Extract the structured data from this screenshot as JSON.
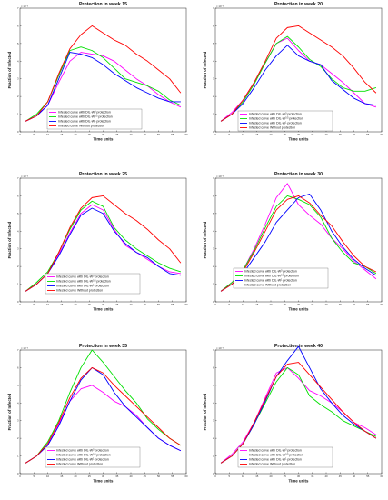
{
  "chart_data": [
    {
      "type": "line",
      "title": "Protection in week 15",
      "xlabel": "Time units",
      "ylabel": "Fraction of Infected",
      "y_exponent": "× 10⁻³",
      "xlim": [
        0,
        60
      ],
      "ylim": [
        0,
        7
      ],
      "xticks": [
        0,
        5,
        10,
        15,
        20,
        25,
        30,
        35,
        40,
        45,
        50,
        55,
        60
      ],
      "yticks": [
        0,
        1,
        2,
        3,
        4,
        5,
        6,
        7
      ],
      "grid": false,
      "legend_position": "lower-left",
      "x": [
        2,
        6,
        10,
        14,
        18,
        22,
        26,
        30,
        34,
        38,
        42,
        46,
        50,
        54,
        58
      ],
      "series": [
        {
          "name": "Infected curve with DIL-W",
          "sup": "0",
          "suffix": " protection",
          "color": "#ff00ff",
          "values": [
            0.6,
            0.9,
            1.5,
            2.8,
            4.0,
            4.5,
            4.4,
            4.3,
            4.0,
            3.5,
            3.0,
            2.6,
            2.1,
            1.7,
            1.4
          ]
        },
        {
          "name": "Infected curve with DIL-W",
          "sup": "0.5",
          "suffix": " protection",
          "color": "#00e000",
          "values": [
            0.6,
            1.0,
            1.7,
            3.2,
            4.6,
            4.8,
            4.6,
            4.2,
            3.6,
            3.0,
            2.8,
            2.6,
            2.3,
            1.8,
            1.5
          ]
        },
        {
          "name": "Infected curve with DIL-W",
          "sup": "1",
          "suffix": " protection",
          "color": "#0000ff",
          "values": [
            0.6,
            0.9,
            1.5,
            3.0,
            4.5,
            4.4,
            4.2,
            3.8,
            3.3,
            2.9,
            2.5,
            2.2,
            1.9,
            1.7,
            1.7
          ]
        },
        {
          "name": "Infected curve Without protection",
          "color": "#ff0000",
          "values": [
            0.6,
            0.9,
            1.7,
            3.3,
            4.7,
            5.5,
            6.0,
            5.6,
            5.2,
            4.9,
            4.4,
            4.0,
            3.5,
            3.0,
            2.2
          ]
        }
      ]
    },
    {
      "type": "line",
      "title": "Protection in week 20",
      "xlabel": "Time units",
      "ylabel": "Fraction of Infected",
      "y_exponent": "× 10⁻³",
      "xlim": [
        0,
        60
      ],
      "ylim": [
        0,
        7
      ],
      "xticks": [
        0,
        5,
        10,
        15,
        20,
        25,
        30,
        35,
        40,
        45,
        50,
        55,
        60
      ],
      "yticks": [
        0,
        1,
        2,
        3,
        4,
        5,
        6,
        7
      ],
      "grid": false,
      "legend_position": "lower-center",
      "x": [
        2,
        6,
        10,
        14,
        18,
        22,
        26,
        30,
        34,
        38,
        42,
        46,
        50,
        54,
        58
      ],
      "series": [
        {
          "name": "Infected curve with DIL-W",
          "sup": "0",
          "suffix": " protection",
          "color": "#ff00ff",
          "values": [
            0.6,
            1.1,
            1.8,
            2.8,
            3.9,
            5.0,
            5.3,
            4.6,
            4.0,
            3.8,
            3.3,
            2.8,
            2.2,
            1.6,
            1.4
          ]
        },
        {
          "name": "Infected curve with DIL-W",
          "sup": "0.5",
          "suffix": " protection",
          "color": "#00e000",
          "values": [
            0.6,
            1.0,
            1.7,
            2.7,
            3.9,
            5.0,
            5.4,
            4.8,
            4.1,
            3.7,
            3.0,
            2.5,
            2.3,
            2.3,
            2.5
          ]
        },
        {
          "name": "Infected curve with DIL-W",
          "sup": "1",
          "suffix": " protection",
          "color": "#0000ff",
          "values": [
            0.6,
            1.0,
            1.6,
            2.5,
            3.5,
            4.3,
            4.9,
            4.3,
            4.0,
            3.8,
            2.9,
            2.4,
            1.9,
            1.6,
            1.5
          ]
        },
        {
          "name": "Infected curve Without protection",
          "color": "#ff0000",
          "values": [
            0.6,
            1.0,
            1.8,
            2.8,
            4.0,
            5.3,
            5.9,
            6.0,
            5.6,
            5.2,
            4.8,
            4.3,
            3.6,
            2.8,
            2.2
          ]
        }
      ]
    },
    {
      "type": "line",
      "title": "Protection in week 25",
      "xlabel": "Time units",
      "ylabel": "Fraction of Infected",
      "y_exponent": "× 10⁻³",
      "xlim": [
        0,
        60
      ],
      "ylim": [
        0,
        7
      ],
      "xticks": [
        0,
        5,
        10,
        15,
        20,
        25,
        30,
        35,
        40,
        45,
        50,
        55,
        60
      ],
      "yticks": [
        0,
        1,
        2,
        3,
        4,
        5,
        6,
        7
      ],
      "grid": false,
      "legend_position": "lower-left",
      "x": [
        2,
        6,
        10,
        14,
        18,
        22,
        26,
        30,
        34,
        38,
        42,
        46,
        50,
        54,
        58
      ],
      "series": [
        {
          "name": "Infected curve with DIL-W",
          "sup": "0",
          "suffix": " protection",
          "color": "#ff00ff",
          "values": [
            0.6,
            1.0,
            1.6,
            2.7,
            3.9,
            5.0,
            5.5,
            5.2,
            4.1,
            3.2,
            2.8,
            2.4,
            2.0,
            1.7,
            1.6
          ]
        },
        {
          "name": "Infected curve with DIL-W",
          "sup": "0.5",
          "suffix": " protection",
          "color": "#00e000",
          "values": [
            0.6,
            1.1,
            1.7,
            2.8,
            4.1,
            5.2,
            5.7,
            5.4,
            4.2,
            3.5,
            3.0,
            2.6,
            2.2,
            1.9,
            1.7
          ]
        },
        {
          "name": "Infected curve with DIL-W",
          "sup": "1",
          "suffix": " protection",
          "color": "#0000ff",
          "values": [
            0.6,
            1.0,
            1.6,
            2.6,
            3.8,
            4.9,
            5.3,
            5.0,
            4.0,
            3.3,
            2.8,
            2.5,
            2.0,
            1.6,
            1.5
          ]
        },
        {
          "name": "Infected curve Without protection",
          "color": "#ff0000",
          "values": [
            0.6,
            1.0,
            1.6,
            2.8,
            4.2,
            5.3,
            5.9,
            6.0,
            5.5,
            5.0,
            4.6,
            4.1,
            3.5,
            3.0,
            2.2
          ]
        }
      ]
    },
    {
      "type": "line",
      "title": "Protection in week 30",
      "xlabel": "Time units",
      "ylabel": "Fraction of Infected",
      "y_exponent": "× 10⁻³",
      "xlim": [
        0,
        60
      ],
      "ylim": [
        0,
        7
      ],
      "xticks": [
        0,
        5,
        10,
        15,
        20,
        25,
        30,
        35,
        40,
        45,
        50,
        55,
        60
      ],
      "yticks": [
        0,
        1,
        2,
        3,
        4,
        5,
        6,
        7
      ],
      "grid": false,
      "legend_position": "lower-left",
      "x": [
        2,
        6,
        10,
        14,
        18,
        22,
        26,
        30,
        34,
        38,
        42,
        46,
        50,
        54,
        58
      ],
      "series": [
        {
          "name": "Infected curve with DIL-W",
          "sup": "0",
          "suffix": " protection",
          "color": "#ff00ff",
          "values": [
            0.6,
            1.1,
            1.8,
            3.0,
            4.4,
            5.9,
            6.7,
            5.5,
            4.9,
            4.4,
            3.6,
            3.0,
            2.3,
            1.8,
            1.3
          ]
        },
        {
          "name": "Infected curve with DIL-W",
          "sup": "0.5",
          "suffix": " protection",
          "color": "#00e000",
          "values": [
            0.6,
            1.1,
            1.8,
            2.9,
            4.2,
            5.4,
            6.0,
            5.8,
            5.5,
            4.8,
            3.6,
            2.8,
            2.2,
            2.0,
            1.6
          ]
        },
        {
          "name": "Infected curve with DIL-W",
          "sup": "1",
          "suffix": " protection",
          "color": "#0000ff",
          "values": [
            0.6,
            1.0,
            1.6,
            2.5,
            3.4,
            4.5,
            5.2,
            5.9,
            6.1,
            5.2,
            4.0,
            3.1,
            2.4,
            1.9,
            1.5
          ]
        },
        {
          "name": "Infected curve Without protection",
          "color": "#ff0000",
          "values": [
            0.6,
            1.0,
            1.7,
            2.8,
            4.0,
            5.2,
            5.8,
            6.0,
            5.6,
            4.9,
            4.3,
            3.4,
            2.6,
            2.0,
            1.7
          ]
        }
      ]
    },
    {
      "type": "line",
      "title": "Protection in week 35",
      "xlabel": "Time units",
      "ylabel": "Fraction of Infected",
      "y_exponent": "× 10⁻³",
      "xlim": [
        0,
        60
      ],
      "ylim": [
        0,
        7
      ],
      "xticks": [
        0,
        5,
        10,
        15,
        20,
        25,
        30,
        35,
        40,
        45,
        50,
        55,
        60
      ],
      "yticks": [
        0,
        1,
        2,
        3,
        4,
        5,
        6,
        7
      ],
      "grid": false,
      "legend_position": "lower-left",
      "x": [
        2,
        6,
        10,
        14,
        18,
        22,
        26,
        30,
        34,
        38,
        42,
        46,
        50,
        54,
        58
      ],
      "series": [
        {
          "name": "Infected curve with DIL-W",
          "sup": "0",
          "suffix": " protection",
          "color": "#ff00ff",
          "values": [
            0.6,
            1.0,
            1.6,
            2.8,
            4.1,
            4.8,
            5.0,
            4.6,
            4.1,
            3.8,
            3.3,
            2.6,
            2.0,
            1.6,
            1.3
          ]
        },
        {
          "name": "Infected curve with DIL-W",
          "sup": "0.5",
          "suffix": " protection",
          "color": "#00e000",
          "values": [
            0.6,
            1.0,
            1.8,
            3.0,
            4.6,
            6.0,
            7.0,
            6.3,
            5.5,
            4.7,
            4.0,
            3.1,
            2.5,
            2.0,
            1.6
          ]
        },
        {
          "name": "Infected curve with DIL-W",
          "sup": "1",
          "suffix": " protection",
          "color": "#0000ff",
          "values": [
            0.6,
            1.0,
            1.6,
            2.7,
            4.1,
            5.3,
            6.0,
            5.6,
            4.6,
            3.8,
            3.2,
            2.6,
            2.0,
            1.6,
            1.3
          ]
        },
        {
          "name": "Infected curve Without protection",
          "color": "#ff0000",
          "values": [
            0.6,
            1.0,
            1.7,
            2.9,
            4.3,
            5.4,
            6.0,
            5.7,
            5.0,
            4.4,
            3.8,
            3.2,
            2.6,
            2.0,
            1.6
          ]
        }
      ]
    },
    {
      "type": "line",
      "title": "Protection in week 40",
      "xlabel": "Time units",
      "ylabel": "Fraction of Infected",
      "y_exponent": "× 10⁻³",
      "xlim": [
        0,
        60
      ],
      "ylim": [
        0,
        7
      ],
      "xticks": [
        0,
        5,
        10,
        15,
        20,
        25,
        30,
        35,
        40,
        45,
        50,
        55,
        60
      ],
      "yticks": [
        0,
        1,
        2,
        3,
        4,
        5,
        6,
        7
      ],
      "grid": false,
      "legend_position": "lower-center",
      "x": [
        2,
        6,
        10,
        14,
        18,
        22,
        26,
        30,
        34,
        38,
        42,
        46,
        50,
        54,
        58
      ],
      "series": [
        {
          "name": "Infected curve with DIL-W",
          "sup": "0",
          "suffix": " protection",
          "color": "#ff00ff",
          "values": [
            0.6,
            1.1,
            1.8,
            2.9,
            4.3,
            5.7,
            6.0,
            5.4,
            4.7,
            4.4,
            4.0,
            3.5,
            2.9,
            2.6,
            2.2
          ]
        },
        {
          "name": "Infected curve with DIL-W",
          "sup": "0.5",
          "suffix": " protection",
          "color": "#00e000",
          "values": [
            0.6,
            1.0,
            1.7,
            2.8,
            4.0,
            5.2,
            6.0,
            5.6,
            4.4,
            3.9,
            3.5,
            3.0,
            2.7,
            2.4,
            2.1
          ]
        },
        {
          "name": "Infected curve with DIL-W",
          "sup": "1",
          "suffix": " protection",
          "color": "#0000ff",
          "values": [
            0.6,
            1.0,
            1.7,
            2.8,
            4.1,
            5.5,
            6.4,
            7.2,
            6.0,
            4.8,
            4.0,
            3.3,
            2.8,
            2.4,
            2.0
          ]
        },
        {
          "name": "Infected curve Without protection",
          "color": "#ff0000",
          "values": [
            0.6,
            1.0,
            1.7,
            2.9,
            4.2,
            5.5,
            6.2,
            6.3,
            5.6,
            4.9,
            4.2,
            3.5,
            2.9,
            2.4,
            2.0
          ]
        }
      ]
    }
  ]
}
